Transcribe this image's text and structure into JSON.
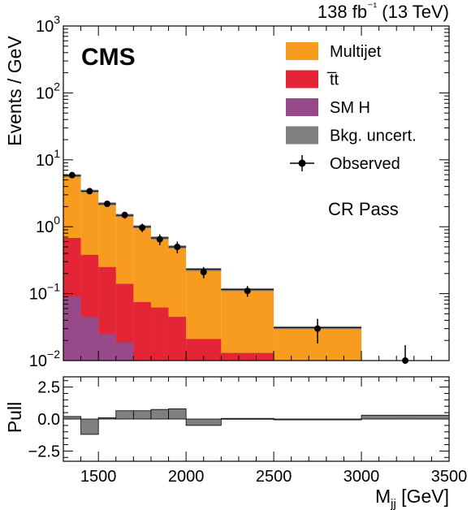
{
  "chart_data": {
    "type": "bar",
    "subtype": "stacked-histogram-with-ratio-panel",
    "experiment_label": "CMS",
    "lumi_label": "138 fb⁻¹ (13 TeV)",
    "region_label": "CR Pass",
    "xlabel": "M",
    "xlabel_sub": "jj",
    "xlabel_unit": "[GeV]",
    "ylabel": "Events / GeV",
    "pull_ylabel": "Pull",
    "x_range": [
      1300,
      3500
    ],
    "x_ticks": [
      1500,
      2000,
      2500,
      3000,
      3500
    ],
    "y_scale": "log",
    "y_range": [
      0.01,
      1000
    ],
    "y_ticks": [
      {
        "value": 0.01,
        "base": "10",
        "exp": "−2"
      },
      {
        "value": 0.1,
        "base": "10",
        "exp": "−1"
      },
      {
        "value": 1,
        "base": "10",
        "exp": "0"
      },
      {
        "value": 10,
        "base": "10",
        "exp": "1"
      },
      {
        "value": 100,
        "base": "10",
        "exp": "2"
      },
      {
        "value": 1000,
        "base": "10",
        "exp": "3"
      }
    ],
    "pull_range": [
      -3.3,
      3.3
    ],
    "pull_ticks": [
      {
        "value": 2.5,
        "label": "2.5"
      },
      {
        "value": 0.0,
        "label": "0.0"
      },
      {
        "value": -2.5,
        "label": "−2.5"
      }
    ],
    "bin_edges": [
      1300,
      1400,
      1500,
      1600,
      1700,
      1800,
      1900,
      2000,
      2200,
      2500,
      3000,
      3500
    ],
    "series": [
      {
        "name": "Multijet",
        "color": "#f89c20",
        "totals": [
          5.8,
          3.4,
          2.2,
          1.48,
          1.0,
          0.68,
          0.5,
          0.23,
          0.115,
          0.031,
          0.0
        ]
      },
      {
        "name": "t̅t",
        "color": "#e42536",
        "totals": [
          0.68,
          0.38,
          0.25,
          0.14,
          0.075,
          0.062,
          0.045,
          0.021,
          0.013,
          0.0,
          0.0
        ]
      },
      {
        "name": "SM H",
        "color": "#964a8b",
        "totals": [
          0.09,
          0.045,
          0.025,
          0.0185,
          0.0,
          0.0,
          0.0,
          0.0,
          0.0,
          0.0,
          0.0
        ]
      }
    ],
    "uncertainty": {
      "name": "Bkg. uncert.",
      "color": "#808080",
      "relative": 0.05
    },
    "observed": {
      "name": "Observed",
      "x": [
        1350,
        1450,
        1550,
        1650,
        1750,
        1850,
        1950,
        2100,
        2350,
        2750,
        3250
      ],
      "y": [
        5.9,
        3.4,
        2.2,
        1.5,
        0.97,
        0.65,
        0.5,
        0.21,
        0.11,
        0.03,
        0.01
      ],
      "yerr": [
        0.4,
        0.3,
        0.22,
        0.18,
        0.14,
        0.12,
        0.1,
        0.04,
        0.02,
        0.012,
        0.007
      ]
    },
    "pulls": [
      0.2,
      -1.2,
      0.1,
      0.65,
      0.65,
      0.75,
      0.8,
      -0.5,
      0.05,
      -0.05,
      0.3
    ],
    "legend_position": "top-right",
    "grid": false
  }
}
